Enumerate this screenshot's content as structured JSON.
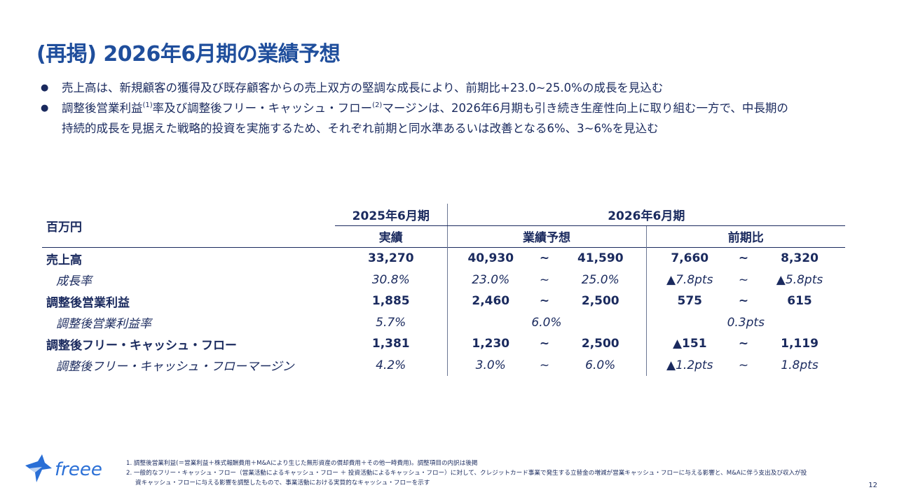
{
  "title": "(再掲) 2026年6月期の業績予想",
  "bullets": {
    "b1": "売上高は、新規顧客の獲得及び既存顧客からの売上双方の堅調な成長により、前期比+23.0~25.0%の成長を見込む",
    "b2_part1": "調整後営業利益",
    "b2_sup1": "(1)",
    "b2_part2": "率及び調整後フリー・キャッシュ・フロー",
    "b2_sup2": "(2)",
    "b2_part3": "マージンは、2026年6月期も引き続き生産性向上に取り組む一方で、中長期の",
    "b2_line2": "持続的成長を見据えた戦略的投資を実施するため、それぞれ前期と同水準あるいは改善となる6%、3~6%を見込む"
  },
  "table": {
    "unit": "百万円",
    "col_fy2025": "2025年6月期",
    "col_fy2026": "2026年6月期",
    "sub_actual": "実績",
    "sub_forecast": "業績予想",
    "sub_yoy": "前期比",
    "tilde": "~",
    "rows": [
      {
        "label": "売上高",
        "actual": "33,270",
        "f_low": "40,930",
        "f_high": "41,590",
        "y_low": "7,660",
        "y_high": "8,320"
      },
      {
        "label": "成長率",
        "actual": "30.8%",
        "f_low": "23.0%",
        "f_high": "25.0%",
        "y_low": "▲7.8pts",
        "y_high": "▲5.8pts"
      },
      {
        "label": "調整後営業利益",
        "actual": "1,885",
        "f_low": "2,460",
        "f_high": "2,500",
        "y_low": "575",
        "y_high": "615"
      },
      {
        "label": "調整後営業利益率",
        "actual": "5.7%",
        "f_single": "6.0%",
        "y_single": "0.3pts"
      },
      {
        "label": "調整後フリー・キャッシュ・フロー",
        "actual": "1,381",
        "f_low": "1,230",
        "f_high": "2,500",
        "y_low": "▲151",
        "y_high": "1,119"
      },
      {
        "label": "調整後フリー・キャッシュ・フローマージン",
        "actual": "4.2%",
        "f_low": "3.0%",
        "f_high": "6.0%",
        "y_low": "▲1.2pts",
        "y_high": "1.8pts"
      }
    ]
  },
  "footer": {
    "logo_text": "freee",
    "note1": "1.  調整後営業利益(＝営業利益＋株式報酬費用＋M&Aにより生じた無形資産の償却費用＋その他一時費用)。調整項目の内訳は後掲",
    "note2": "2.  一般的なフリー・キャッシュ・フロー（営業活動によるキャッシュ・フロー ＋ 投資活動によるキャッシュ・フロー）に対して、クレジットカード事業で発生する立替金の増減が営業キャッシュ・フローに与える影響と、M&Aに伴う支出及び収入が投",
    "note2_cont": "資キャッシュ・フローに与える影響を調整したもので、事業活動における実質的なキャッシュ・フローを示す",
    "page": "12"
  },
  "colors": {
    "title": "#1f4e9c",
    "text": "#1a2a5e",
    "logo": "#2a6fd6"
  }
}
